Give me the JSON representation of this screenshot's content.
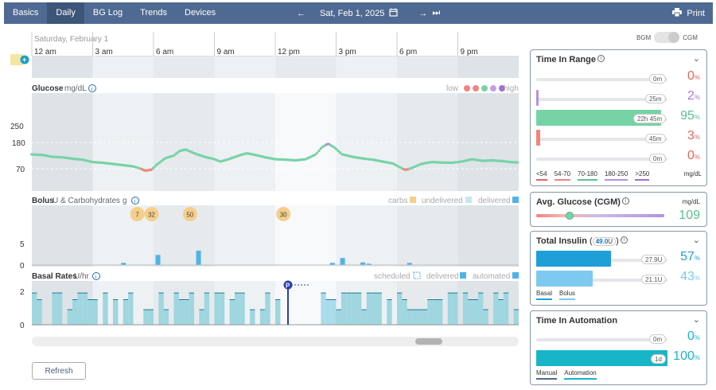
{
  "nav": {
    "tabs": [
      "Basics",
      "Daily",
      "BG Log",
      "Trends",
      "Devices"
    ],
    "active_tab": "Daily",
    "date": "Sat, Feb 1, 2025",
    "print": "Print"
  },
  "chart": {
    "day_label": "Saturday, February 1",
    "hours": [
      "12 am",
      "3 am",
      "6 am",
      "9 am",
      "12 pm",
      "3 pm",
      "6 pm",
      "9 pm"
    ],
    "glucose": {
      "title": "Glucose",
      "unit": "mg/dL",
      "ticks": [
        "250",
        "180",
        "70"
      ],
      "legend_low": "low",
      "legend_high": "high",
      "legend_colors": [
        "#f4837e",
        "#f4837e",
        "#76d3a6",
        "#c79ee0",
        "#9e6fd0"
      ]
    },
    "bolus": {
      "title": "Bolus",
      "unit": "U & Carbohydrates g",
      "ticks": [
        "5",
        "0"
      ],
      "legend": [
        "carbs",
        "undelivered",
        "delivered"
      ],
      "carbs": [
        "7",
        "32",
        "50",
        "30"
      ]
    },
    "basal": {
      "title": "Basal Rates",
      "unit": "U/hr",
      "ticks": [
        "2",
        "0"
      ],
      "legend": [
        "scheduled",
        "delivered",
        "automated"
      ],
      "marker": "P"
    }
  },
  "toggle": {
    "left": "BGM",
    "right": "CGM"
  },
  "tir": {
    "title": "Time In Range",
    "rows": [
      {
        "pill": "0m",
        "pct": "0",
        "color": "#f4837e",
        "fill": 0
      },
      {
        "pill": "25m",
        "pct": "2",
        "color": "#b590e0",
        "fill": 0.02
      },
      {
        "pill": "22h 45m",
        "pct": "95",
        "color": "#76d3a6",
        "fill": 0.95
      },
      {
        "pill": "45m",
        "pct": "3",
        "color": "#f4837e",
        "fill": 0.03
      },
      {
        "pill": "0m",
        "pct": "0",
        "color": "#e0675f",
        "fill": 0
      }
    ],
    "keys": [
      "<54",
      "54-70",
      "70-180",
      "180-250",
      ">250"
    ],
    "unit": "mg/dL"
  },
  "avg": {
    "title": "Avg. Glucose (CGM)",
    "unit": "mg/dL",
    "value": "109"
  },
  "insulin": {
    "title": "Total Insulin",
    "total": "49.0",
    "total_unit": "U",
    "rows": [
      {
        "pill": "27.9U",
        "pct": "57",
        "fill": 0.57
      },
      {
        "pill": "21.1U",
        "pct": "43",
        "fill": 0.43
      }
    ],
    "keys": [
      "Basal",
      "Bolus"
    ]
  },
  "automation": {
    "title": "Time In Automation",
    "rows": [
      {
        "pill": "0m",
        "pct": "0",
        "fill": 0
      },
      {
        "pill": "1d",
        "pct": "100",
        "fill": 1
      }
    ],
    "keys": [
      "Manual",
      "Automation"
    ]
  },
  "refresh": "Refresh"
}
